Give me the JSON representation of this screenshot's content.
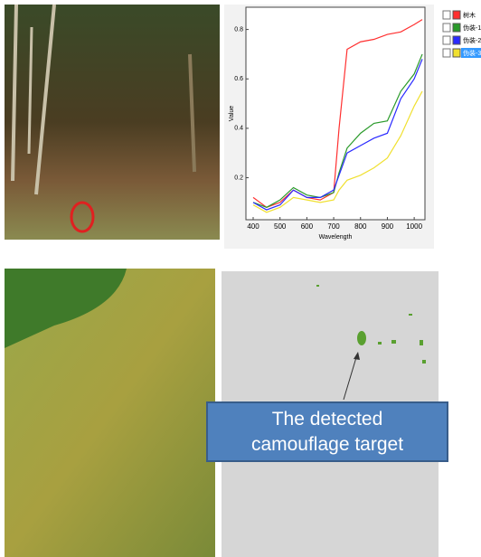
{
  "chart_data": {
    "type": "line",
    "xlabel": "Wavelength",
    "ylabel": "Value",
    "x": [
      400,
      450,
      500,
      550,
      600,
      650,
      700,
      720,
      750,
      800,
      850,
      900,
      950,
      1000,
      1030
    ],
    "series": [
      {
        "name": "树木",
        "color": "#ff3030",
        "values": [
          0.12,
          0.08,
          0.1,
          0.15,
          0.12,
          0.11,
          0.14,
          0.4,
          0.72,
          0.75,
          0.76,
          0.78,
          0.79,
          0.82,
          0.84
        ]
      },
      {
        "name": "伪装-1",
        "color": "#2a9a2a",
        "values": [
          0.1,
          0.08,
          0.11,
          0.16,
          0.13,
          0.12,
          0.14,
          0.22,
          0.32,
          0.38,
          0.42,
          0.43,
          0.55,
          0.62,
          0.7
        ]
      },
      {
        "name": "伪装-2",
        "color": "#2a2aff",
        "values": [
          0.1,
          0.07,
          0.09,
          0.15,
          0.12,
          0.12,
          0.15,
          0.21,
          0.3,
          0.33,
          0.36,
          0.38,
          0.52,
          0.6,
          0.68
        ]
      },
      {
        "name": "伪装-3",
        "color": "#f0e030",
        "values": [
          0.09,
          0.06,
          0.08,
          0.12,
          0.11,
          0.1,
          0.11,
          0.15,
          0.19,
          0.21,
          0.24,
          0.28,
          0.37,
          0.49,
          0.55
        ]
      }
    ],
    "xlim": [
      373,
      1040
    ],
    "ylim": [
      0.03,
      0.89
    ],
    "xticks": [
      400,
      500,
      600,
      700,
      800,
      900,
      1000
    ],
    "yticks": [
      0.2,
      0.4,
      0.6,
      0.8
    ]
  },
  "callout": {
    "text": "The detected camouflage target"
  }
}
